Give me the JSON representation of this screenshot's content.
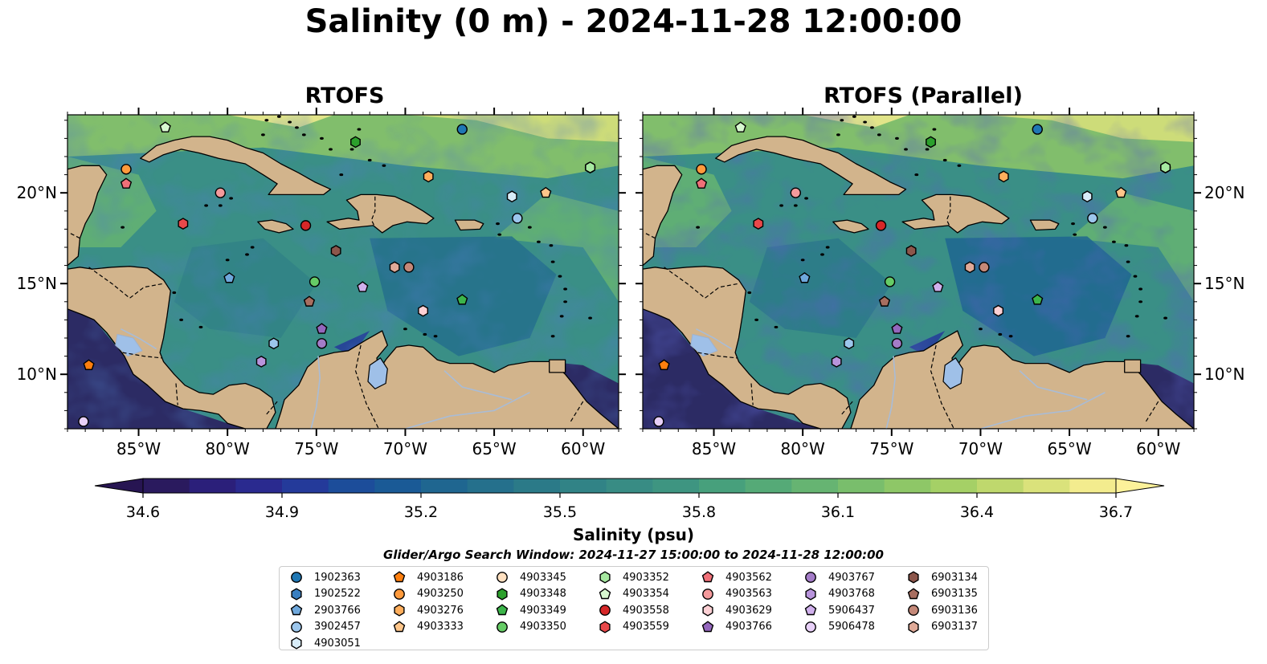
{
  "title": "Salinity (0 m) - 2024-11-28 12:00:00",
  "panels": [
    {
      "title": "RTOFS"
    },
    {
      "title": "RTOFS (Parallel)"
    }
  ],
  "map": {
    "lon_range": [
      -89,
      -58
    ],
    "lat_range": [
      7,
      24.3
    ],
    "lon_ticks": [
      -85,
      -80,
      -75,
      -70,
      -65,
      -60
    ],
    "lat_ticks": [
      10,
      15,
      20
    ],
    "lon_tick_labels": [
      "85°W",
      "80°W",
      "75°W",
      "70°W",
      "65°W",
      "60°W"
    ],
    "lat_tick_labels": [
      "10°N",
      "15°N",
      "20°N"
    ],
    "land_color": "#d2b48c",
    "lake_color": "#9fc0e8"
  },
  "colorbar": {
    "min": 34.6,
    "max": 36.7,
    "tick_labels": [
      "34.6",
      "34.9",
      "35.2",
      "35.5",
      "35.8",
      "36.1",
      "36.4",
      "36.7"
    ],
    "label": "Salinity (psu)",
    "colors": [
      "#2a1a5e",
      "#2b1f7a",
      "#2a2a8f",
      "#243a9a",
      "#1c4d9a",
      "#1a5a96",
      "#1f6690",
      "#25708c",
      "#2b7a88",
      "#318386",
      "#388c84",
      "#3e9581",
      "#47a07c",
      "#55aa77",
      "#66b472",
      "#79be6c",
      "#8ec767",
      "#a5d066",
      "#bfd86d",
      "#dae27b",
      "#f3ec8e"
    ],
    "over_color": "#fdf29a",
    "under_color": "#271552"
  },
  "search_window": "Glider/Argo Search Window: 2024-11-27 15:00:00 to 2024-11-28 12:00:00",
  "floats": [
    {
      "id": "1902363",
      "marker": "circle",
      "color": "#1f77b4",
      "lon": -66.8,
      "lat": 23.5
    },
    {
      "id": "1902522",
      "marker": "hexagon",
      "color": "#3a7fc0",
      "lon": -59.6,
      "lat": 21.4
    },
    {
      "id": "2903766",
      "marker": "pentagon",
      "color": "#6fa8dc",
      "lon": -79.9,
      "lat": 15.3
    },
    {
      "id": "3902457",
      "marker": "circle",
      "color": "#9cc6ec",
      "lon": -63.7,
      "lat": 18.6
    },
    {
      "id": "4903051",
      "marker": "hexagon",
      "color": "#d8ecf8",
      "lon": -64.0,
      "lat": 19.8
    },
    {
      "id": "4903186",
      "marker": "pentagon",
      "color": "#ff7f0e",
      "lon": -87.8,
      "lat": 10.5
    },
    {
      "id": "4903250",
      "marker": "circle",
      "color": "#ff9a3c",
      "lon": -85.7,
      "lat": 21.3
    },
    {
      "id": "4903276",
      "marker": "hexagon",
      "color": "#ffae5c",
      "lon": -68.7,
      "lat": 20.9
    },
    {
      "id": "4903333",
      "marker": "pentagon",
      "color": "#ffc68a",
      "lon": -62.1,
      "lat": 20.0
    },
    {
      "id": "4903345",
      "marker": "circle",
      "color": "#ffe0c0",
      "lon": -59.6,
      "lat": 21.4
    },
    {
      "id": "4903348",
      "marker": "hexagon",
      "color": "#2ca02c",
      "lon": -72.8,
      "lat": 22.8
    },
    {
      "id": "4903349",
      "marker": "pentagon",
      "color": "#3cb54a",
      "lon": -66.8,
      "lat": 14.1
    },
    {
      "id": "4903350",
      "marker": "circle",
      "color": "#66cc66",
      "lon": -75.1,
      "lat": 15.1
    },
    {
      "id": "4903352",
      "marker": "hexagon",
      "color": "#a6e8a0",
      "lon": -59.6,
      "lat": 21.4
    },
    {
      "id": "4903354",
      "marker": "pentagon",
      "color": "#d8f8d0",
      "lon": -83.5,
      "lat": 23.6
    },
    {
      "id": "4903558",
      "marker": "circle",
      "color": "#d62728",
      "lon": -75.6,
      "lat": 18.2
    },
    {
      "id": "4903559",
      "marker": "hexagon",
      "color": "#e8484a",
      "lon": -82.5,
      "lat": 18.3
    },
    {
      "id": "4903562",
      "marker": "pentagon",
      "color": "#f07078",
      "lon": -85.7,
      "lat": 20.5
    },
    {
      "id": "4903563",
      "marker": "circle",
      "color": "#f49a9c",
      "lon": -80.4,
      "lat": 20.0
    },
    {
      "id": "4903629",
      "marker": "hexagon",
      "color": "#fcd0d4",
      "lon": -69.0,
      "lat": 13.5
    },
    {
      "id": "4903766",
      "marker": "pentagon",
      "color": "#9467bd",
      "lon": -74.7,
      "lat": 12.5
    },
    {
      "id": "4903767",
      "marker": "circle",
      "color": "#a47cc8",
      "lon": -74.7,
      "lat": 11.7
    },
    {
      "id": "4903768",
      "marker": "hexagon",
      "color": "#b894dc",
      "lon": -78.1,
      "lat": 10.7
    },
    {
      "id": "5906437",
      "marker": "pentagon",
      "color": "#d0b0ec",
      "lon": -72.4,
      "lat": 14.8
    },
    {
      "id": "5906478",
      "marker": "circle",
      "color": "#e8d0f8",
      "lon": -88.1,
      "lat": 7.4
    },
    {
      "id": "6903134",
      "marker": "hexagon",
      "color": "#8c564b",
      "lon": -73.9,
      "lat": 16.8
    },
    {
      "id": "6903135",
      "marker": "pentagon",
      "color": "#a86e60",
      "lon": -75.4,
      "lat": 14.0
    },
    {
      "id": "6903136",
      "marker": "circle",
      "color": "#c48878",
      "lon": -69.8,
      "lat": 15.9
    },
    {
      "id": "6903137",
      "marker": "hexagon",
      "color": "#e0aa98",
      "lon": -70.6,
      "lat": 15.9
    },
    {
      "id": "3902457b",
      "marker": "hexagon",
      "color": "#9cc6ec",
      "lon": -77.4,
      "lat": 11.7
    }
  ]
}
